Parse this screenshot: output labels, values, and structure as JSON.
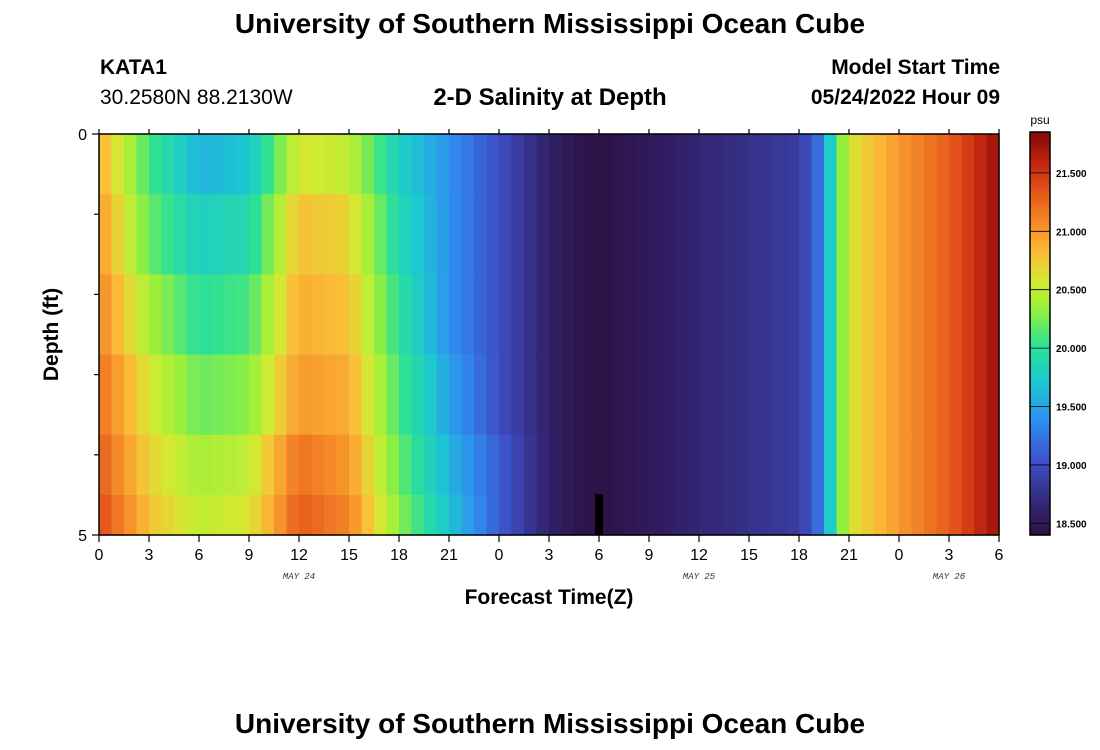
{
  "header": {
    "title": "University of Southern Mississippi Ocean Cube",
    "station": "KATA1",
    "coords": "30.2580N  88.2130W",
    "subtitle": "2-D Salinity at Depth",
    "model_start_label": "Model Start Time",
    "model_start_value": "05/24/2022 Hour 09"
  },
  "footer": {
    "title": "University of Southern Mississippi Ocean Cube"
  },
  "chart_data": {
    "type": "heatmap",
    "title": "2-D Salinity at Depth",
    "xlabel": "Forecast Time(Z)",
    "ylabel": "Depth (ft)",
    "x_tick_labels": [
      "0",
      "3",
      "6",
      "9",
      "12",
      "15",
      "18",
      "21",
      "0",
      "3",
      "6",
      "9",
      "12",
      "15",
      "18",
      "21",
      "0",
      "3",
      "6"
    ],
    "x_hours": [
      0,
      3,
      6,
      9,
      12,
      15,
      18,
      21,
      24,
      27,
      30,
      33,
      36,
      39,
      42,
      45,
      48,
      51,
      54
    ],
    "date_labels": [
      {
        "label": "MAY 24",
        "hour": 12
      },
      {
        "label": "MAY 25",
        "hour": 36
      },
      {
        "label": "MAY 26",
        "hour": 51
      }
    ],
    "y_tick_labels": [
      "0",
      "5"
    ],
    "ylim": [
      0,
      5
    ],
    "xlim_hours": [
      0,
      54
    ],
    "current_time_marker_hour": 30,
    "colorbar": {
      "unit": "psu",
      "range": [
        18.4,
        21.85
      ],
      "tick_labels": [
        "21.500",
        "21.000",
        "20.500",
        "20.000",
        "19.500",
        "19.000",
        "18.500"
      ],
      "tick_values": [
        21.5,
        21.0,
        20.5,
        20.0,
        19.5,
        19.0,
        18.5
      ]
    },
    "depth_levels_ft": [
      0.25,
      1.25,
      2.25,
      3.25,
      4.25,
      4.75
    ],
    "salinity_time_hours": [
      0,
      3,
      6,
      9,
      12,
      15,
      18,
      21,
      24,
      27,
      28.5,
      30,
      33,
      36,
      39,
      42,
      43,
      45,
      48,
      51,
      54
    ],
    "salinity_psu_by_depth": [
      [
        20.9,
        20.1,
        19.6,
        19.7,
        20.6,
        20.5,
        19.8,
        19.4,
        19.0,
        18.6,
        18.45,
        18.4,
        18.5,
        18.65,
        18.75,
        18.85,
        19.1,
        20.6,
        21.0,
        21.3,
        21.75
      ],
      [
        21.0,
        20.2,
        19.8,
        19.9,
        20.8,
        20.7,
        19.9,
        19.4,
        19.0,
        18.6,
        18.45,
        18.4,
        18.5,
        18.65,
        18.75,
        18.85,
        19.1,
        20.6,
        21.0,
        21.3,
        21.75
      ],
      [
        21.1,
        20.4,
        20.0,
        20.1,
        20.9,
        20.8,
        20.0,
        19.4,
        19.0,
        18.6,
        18.45,
        18.4,
        18.5,
        18.65,
        18.75,
        18.85,
        19.1,
        20.6,
        21.0,
        21.3,
        21.75
      ],
      [
        21.2,
        20.6,
        20.2,
        20.3,
        21.0,
        20.9,
        20.1,
        19.5,
        19.0,
        18.6,
        18.45,
        18.4,
        18.5,
        18.65,
        18.75,
        18.85,
        19.1,
        20.6,
        21.0,
        21.3,
        21.75
      ],
      [
        21.3,
        20.7,
        20.4,
        20.5,
        21.2,
        21.0,
        20.2,
        19.6,
        19.1,
        18.6,
        18.45,
        18.4,
        18.5,
        18.65,
        18.75,
        18.85,
        19.1,
        20.6,
        21.0,
        21.3,
        21.75
      ],
      [
        21.4,
        20.8,
        20.5,
        20.6,
        21.3,
        21.1,
        20.3,
        19.7,
        19.1,
        18.6,
        18.45,
        18.4,
        18.5,
        18.65,
        18.75,
        18.85,
        19.1,
        20.6,
        21.0,
        21.3,
        21.75
      ]
    ]
  }
}
